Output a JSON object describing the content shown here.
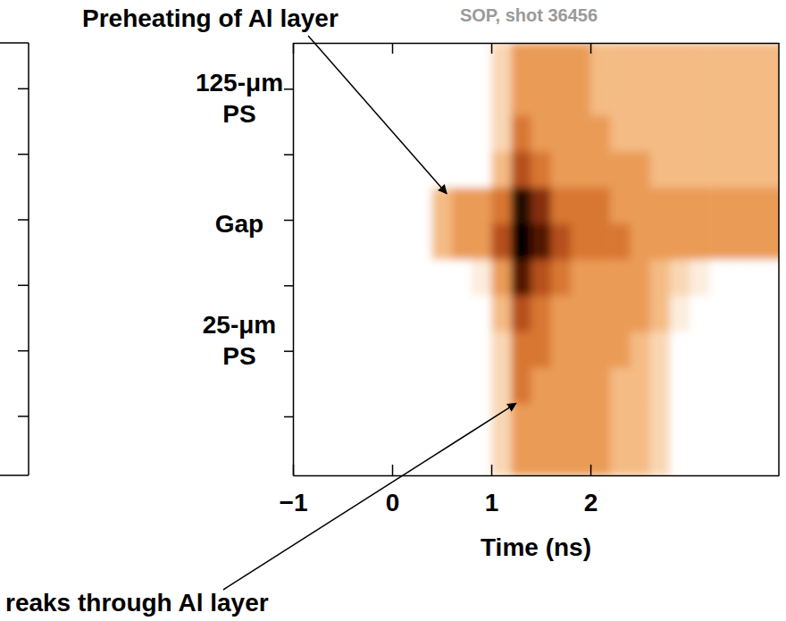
{
  "chart_data": {
    "type": "heatmap",
    "subtitle": "SOP, shot 36456",
    "x_label": "Time (ns)",
    "xlim": [
      -1,
      3.9
    ],
    "xticks": [
      {
        "value": -1,
        "label": "−1"
      },
      0,
      1,
      2
    ],
    "ylim": [
      0.1,
      6.7
    ],
    "yticks": [
      1,
      2,
      3,
      4,
      5,
      6
    ],
    "tick_labels": "x",
    "x_edges": [
      -1,
      -0.8,
      -0.6,
      -0.4,
      -0.2,
      0,
      0.2,
      0.4,
      0.6,
      0.8,
      1,
      1.2,
      1.4,
      1.6,
      1.8,
      2,
      2.2,
      2.4,
      2.6,
      2.8,
      3,
      3.2,
      3.4,
      3.6,
      3.8,
      4
    ],
    "y_edges": [
      0.1,
      0.65,
      1.2,
      1.75,
      2.3,
      2.85,
      3.4,
      3.95,
      4.5,
      5.05,
      5.6,
      6.15,
      6.7
    ],
    "color_range": [
      0,
      10
    ],
    "values": [
      [
        0,
        0,
        0,
        0,
        0,
        0,
        0,
        0,
        0,
        0,
        2,
        4,
        4,
        4,
        4,
        4,
        3,
        3,
        2,
        0,
        0,
        0,
        0,
        0,
        0
      ],
      [
        0,
        0,
        0,
        0,
        0,
        0,
        0,
        0,
        0,
        0,
        2,
        4,
        4,
        4,
        4,
        4,
        3,
        3,
        2,
        0,
        0,
        0,
        0,
        0,
        0
      ],
      [
        0,
        0,
        0,
        0,
        0,
        0,
        0,
        0,
        0,
        0,
        2,
        5,
        4,
        4,
        4,
        4,
        3,
        3,
        2,
        0,
        0,
        0,
        0,
        0,
        0
      ],
      [
        0,
        0,
        0,
        0,
        0,
        0,
        0,
        0,
        0,
        0,
        2,
        5,
        5,
        4,
        4,
        4,
        4,
        3,
        2,
        0,
        0,
        0,
        0,
        0,
        0
      ],
      [
        0,
        0,
        0,
        0,
        0,
        0,
        0,
        0,
        0,
        0,
        3,
        6,
        5,
        4,
        4,
        4,
        4,
        4,
        3,
        1,
        0,
        0,
        0,
        0,
        0
      ],
      [
        0,
        0,
        0,
        0,
        0,
        0,
        0,
        0,
        0,
        1,
        4,
        8,
        6,
        5,
        4,
        4,
        4,
        4,
        3,
        2,
        1,
        0,
        0,
        0,
        0
      ],
      [
        0,
        0,
        0,
        0,
        0,
        0,
        0,
        3,
        4,
        4,
        6,
        10,
        8,
        6,
        5,
        5,
        5,
        4,
        4,
        4,
        4,
        4,
        4,
        4,
        4
      ],
      [
        0,
        0,
        0,
        0,
        0,
        0,
        0,
        3,
        4,
        4,
        5,
        9,
        7,
        5,
        5,
        5,
        4,
        4,
        4,
        4,
        4,
        4,
        4,
        4,
        4
      ],
      [
        0,
        0,
        0,
        0,
        0,
        0,
        0,
        0,
        0,
        0,
        3,
        6,
        5,
        4,
        4,
        4,
        4,
        4,
        3,
        3,
        3,
        3,
        3,
        3,
        3
      ],
      [
        0,
        0,
        0,
        0,
        0,
        0,
        0,
        0,
        0,
        0,
        2,
        5,
        4,
        4,
        4,
        4,
        3,
        3,
        3,
        3,
        3,
        3,
        3,
        3,
        3
      ],
      [
        0,
        0,
        0,
        0,
        0,
        0,
        0,
        0,
        0,
        0,
        2,
        4,
        4,
        4,
        4,
        3,
        3,
        3,
        3,
        3,
        3,
        3,
        3,
        3,
        3
      ],
      [
        0,
        0,
        0,
        0,
        0,
        0,
        0,
        0,
        0,
        0,
        2,
        4,
        4,
        4,
        4,
        3,
        3,
        3,
        3,
        3,
        3,
        3,
        3,
        3,
        3
      ]
    ],
    "region_labels": [
      {
        "text": "125-μm PS",
        "y": 5.86
      },
      {
        "text": "Gap",
        "y": 3.95
      },
      {
        "text": "25-μm PS",
        "y": 2.17
      }
    ],
    "annotations": [
      {
        "text": "Preheating of Al layer",
        "x": 0.55,
        "y": 4.4
      },
      {
        "text": "reaks through Al layer",
        "x": 1.25,
        "y": 1.2
      }
    ]
  }
}
